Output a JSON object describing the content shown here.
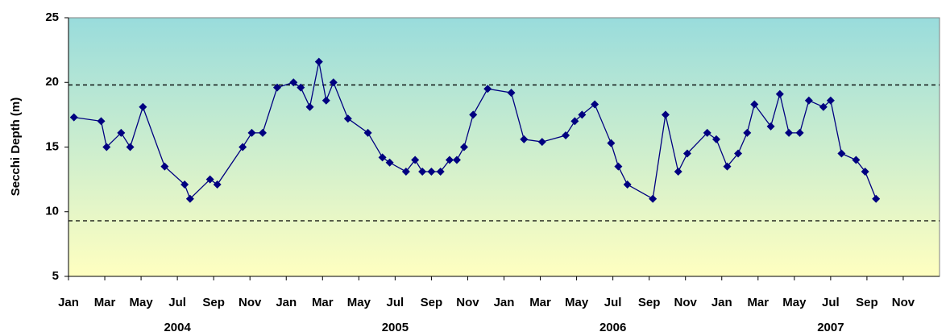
{
  "chart_data": {
    "type": "line",
    "ylabel": "Secchi Depth (m)",
    "color": "#000080",
    "background": [
      "#99dcdc",
      "#ffffc0"
    ],
    "ylim": [
      5,
      25
    ],
    "yticks": [
      5,
      10,
      15,
      20,
      25
    ],
    "xlim": [
      0,
      48
    ],
    "xticks": [
      {
        "value": 0,
        "label": "Jan"
      },
      {
        "value": 2,
        "label": "Mar"
      },
      {
        "value": 4,
        "label": "May"
      },
      {
        "value": 6,
        "label": "Jul"
      },
      {
        "value": 8,
        "label": "Sep"
      },
      {
        "value": 10,
        "label": "Nov"
      },
      {
        "value": 12,
        "label": "Jan"
      },
      {
        "value": 14,
        "label": "Mar"
      },
      {
        "value": 16,
        "label": "May"
      },
      {
        "value": 18,
        "label": "Jul"
      },
      {
        "value": 20,
        "label": "Sep"
      },
      {
        "value": 22,
        "label": "Nov"
      },
      {
        "value": 24,
        "label": "Jan"
      },
      {
        "value": 26,
        "label": "Mar"
      },
      {
        "value": 28,
        "label": "May"
      },
      {
        "value": 30,
        "label": "Jul"
      },
      {
        "value": 32,
        "label": "Sep"
      },
      {
        "value": 34,
        "label": "Nov"
      },
      {
        "value": 36,
        "label": "Jan"
      },
      {
        "value": 38,
        "label": "Mar"
      },
      {
        "value": 40,
        "label": "May"
      },
      {
        "value": 42,
        "label": "Jul"
      },
      {
        "value": 44,
        "label": "Sep"
      },
      {
        "value": 46,
        "label": "Nov"
      }
    ],
    "year_labels": [
      {
        "value": 6,
        "label": "2004"
      },
      {
        "value": 18,
        "label": "2005"
      },
      {
        "value": 30,
        "label": "2006"
      },
      {
        "value": 42,
        "label": "2007"
      }
    ],
    "reference_lines": [
      19.8,
      9.3
    ],
    "x": [
      0.3,
      1.8,
      2.1,
      2.9,
      3.4,
      4.1,
      5.3,
      6.4,
      6.7,
      7.8,
      8.2,
      9.6,
      10.1,
      10.7,
      11.5,
      12.4,
      12.8,
      13.3,
      13.8,
      14.2,
      14.6,
      15.4,
      16.5,
      17.3,
      17.7,
      18.6,
      19.1,
      19.5,
      20.0,
      20.5,
      21.0,
      21.4,
      21.8,
      22.3,
      23.1,
      24.4,
      25.1,
      26.1,
      27.4,
      27.9,
      28.3,
      29.0,
      29.9,
      30.3,
      30.8,
      32.2,
      32.9,
      33.6,
      34.1,
      35.2,
      35.7,
      36.3,
      36.9,
      37.4,
      37.8,
      38.7,
      39.2,
      39.7,
      40.3,
      40.8,
      41.6,
      42.0,
      42.6,
      43.4,
      43.9,
      44.5
    ],
    "values": [
      17.3,
      17.0,
      15.0,
      16.1,
      15.0,
      18.1,
      13.5,
      12.1,
      11.0,
      12.5,
      12.1,
      15.0,
      16.1,
      16.1,
      19.6,
      20.0,
      19.6,
      18.1,
      21.6,
      18.6,
      20.0,
      17.2,
      16.1,
      14.2,
      13.8,
      13.1,
      14.0,
      13.1,
      13.1,
      13.1,
      14.0,
      14.0,
      15.0,
      17.5,
      19.5,
      19.2,
      15.6,
      15.4,
      15.9,
      17.0,
      17.5,
      18.3,
      15.3,
      13.5,
      12.1,
      11.0,
      17.5,
      13.1,
      14.5,
      16.1,
      15.6,
      13.5,
      14.5,
      16.1,
      18.3,
      16.6,
      19.1,
      16.1,
      16.1,
      18.6,
      18.1,
      18.6,
      14.5,
      14.0,
      13.1,
      11.0
    ]
  }
}
